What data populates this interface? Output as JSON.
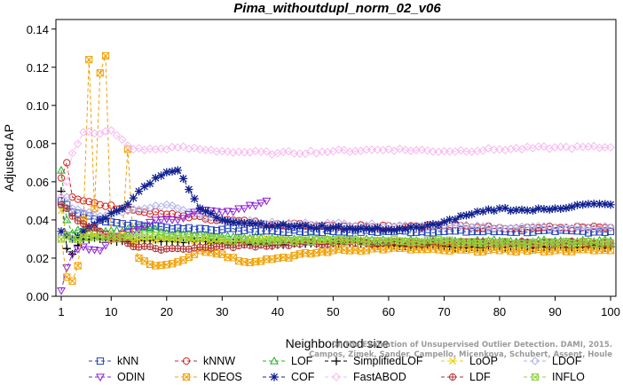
{
  "chart_data": {
    "type": "line",
    "title": "Pima_withoutdupl_norm_02_v06",
    "xlabel": "Neighborhood size",
    "ylabel": "Adjusted AP",
    "xlim": [
      1,
      100
    ],
    "ylim": [
      0,
      0.145
    ],
    "x_ticks": [
      1,
      10,
      20,
      30,
      40,
      50,
      60,
      70,
      80,
      90,
      100
    ],
    "y_ticks": [
      0.0,
      0.02,
      0.04,
      0.06,
      0.08,
      0.1,
      0.12,
      0.14
    ],
    "y_tick_labels": [
      "0.00",
      "0.02",
      "0.04",
      "0.06",
      "0.08",
      "0.10",
      "0.12",
      "0.14"
    ],
    "grid": false,
    "legend_position": "bottom",
    "watermark": [
      "Campos, Zimek, Sander, Campello, Micenkova, Schubert, Assent, Houle",
      "On the Evaluation of Unsupervised Outlier Detection. DAMI, 2015."
    ],
    "series": [
      {
        "name": "kNN",
        "color": "#1f3fbf",
        "marker": "square",
        "dash": "4,3",
        "anchors": [
          [
            1,
            0.05
          ],
          [
            2,
            0.048
          ],
          [
            3,
            0.044
          ],
          [
            5,
            0.043
          ],
          [
            8,
            0.04
          ],
          [
            12,
            0.038
          ],
          [
            20,
            0.036
          ],
          [
            30,
            0.035
          ],
          [
            40,
            0.034
          ],
          [
            50,
            0.034
          ],
          [
            60,
            0.034
          ],
          [
            70,
            0.034
          ],
          [
            80,
            0.034
          ],
          [
            90,
            0.034
          ],
          [
            100,
            0.034
          ]
        ]
      },
      {
        "name": "kNNW",
        "color": "#d62020",
        "marker": "circle",
        "dash": "4,3",
        "anchors": [
          [
            1,
            0.062
          ],
          [
            2,
            0.07
          ],
          [
            3,
            0.052
          ],
          [
            5,
            0.05
          ],
          [
            8,
            0.048
          ],
          [
            12,
            0.046
          ],
          [
            16,
            0.044
          ],
          [
            20,
            0.043
          ],
          [
            30,
            0.04
          ],
          [
            40,
            0.038
          ],
          [
            50,
            0.037
          ],
          [
            60,
            0.037
          ],
          [
            70,
            0.037
          ],
          [
            80,
            0.036
          ],
          [
            90,
            0.036
          ],
          [
            100,
            0.036
          ]
        ]
      },
      {
        "name": "LOF",
        "color": "#20b020",
        "marker": "triangle-up",
        "dash": "4,3",
        "anchors": [
          [
            1,
            0.066
          ],
          [
            2,
            0.04
          ],
          [
            3,
            0.033
          ],
          [
            5,
            0.035
          ],
          [
            8,
            0.034
          ],
          [
            12,
            0.034
          ],
          [
            16,
            0.036
          ],
          [
            20,
            0.033
          ],
          [
            30,
            0.031
          ],
          [
            40,
            0.03
          ],
          [
            50,
            0.03
          ],
          [
            60,
            0.029
          ],
          [
            70,
            0.029
          ],
          [
            80,
            0.029
          ],
          [
            90,
            0.029
          ],
          [
            100,
            0.029
          ]
        ]
      },
      {
        "name": "SimplifiedLOF",
        "color": "#000000",
        "marker": "plus",
        "dash": "4,3",
        "anchors": [
          [
            1,
            0.055
          ],
          [
            2,
            0.025
          ],
          [
            3,
            0.022
          ],
          [
            5,
            0.03
          ],
          [
            8,
            0.03
          ],
          [
            12,
            0.029
          ],
          [
            16,
            0.029
          ],
          [
            20,
            0.029
          ],
          [
            30,
            0.028
          ],
          [
            40,
            0.027
          ],
          [
            50,
            0.028
          ],
          [
            60,
            0.027
          ],
          [
            70,
            0.026
          ],
          [
            80,
            0.026
          ],
          [
            90,
            0.026
          ],
          [
            100,
            0.026
          ]
        ]
      },
      {
        "name": "LoOP",
        "color": "#e8d000",
        "marker": "x",
        "dash": "4,3",
        "anchors": [
          [
            1,
            0.045
          ],
          [
            2,
            0.032
          ],
          [
            3,
            0.03
          ],
          [
            5,
            0.032
          ],
          [
            8,
            0.031
          ],
          [
            12,
            0.03
          ],
          [
            16,
            0.03
          ],
          [
            20,
            0.03
          ],
          [
            30,
            0.029
          ],
          [
            40,
            0.03
          ],
          [
            50,
            0.029
          ],
          [
            60,
            0.029
          ],
          [
            70,
            0.028
          ],
          [
            80,
            0.028
          ],
          [
            90,
            0.028
          ],
          [
            100,
            0.028
          ]
        ]
      },
      {
        "name": "LDOF",
        "color": "#b0b0e8",
        "marker": "diamond",
        "dash": "4,3",
        "anchors": [
          [
            1,
            0.048
          ],
          [
            2,
            0.052
          ],
          [
            3,
            0.046
          ],
          [
            5,
            0.044
          ],
          [
            8,
            0.042
          ],
          [
            12,
            0.044
          ],
          [
            16,
            0.046
          ],
          [
            20,
            0.048
          ],
          [
            24,
            0.044
          ],
          [
            30,
            0.04
          ],
          [
            40,
            0.038
          ],
          [
            50,
            0.038
          ],
          [
            60,
            0.037
          ],
          [
            70,
            0.037
          ],
          [
            80,
            0.036
          ],
          [
            90,
            0.036
          ],
          [
            100,
            0.036
          ]
        ]
      },
      {
        "name": "ODIN",
        "color": "#8a20d6",
        "marker": "triangle-down",
        "dash": "4,3",
        "anchors": [
          [
            1,
            0.003
          ],
          [
            2,
            0.015
          ],
          [
            3,
            0.022
          ],
          [
            5,
            0.026
          ],
          [
            8,
            0.024
          ],
          [
            10,
            0.03
          ],
          [
            14,
            0.034
          ],
          [
            18,
            0.04
          ],
          [
            22,
            0.04
          ],
          [
            26,
            0.045
          ],
          [
            30,
            0.044
          ],
          [
            34,
            0.046
          ],
          [
            38,
            0.05
          ]
        ]
      },
      {
        "name": "KDEOS",
        "color": "#f0a000",
        "marker": "square-x",
        "dash": "4,3",
        "anchors": [
          [
            1,
            0.03
          ],
          [
            2,
            0.01
          ],
          [
            3,
            0.008
          ],
          [
            4,
            0.016
          ],
          [
            5,
            0.04
          ],
          [
            6,
            0.124
          ],
          [
            7,
            0.046
          ],
          [
            8,
            0.117
          ],
          [
            9,
            0.126
          ],
          [
            10,
            0.03
          ],
          [
            12,
            0.032
          ],
          [
            13,
            0.077
          ],
          [
            14,
            0.028
          ],
          [
            15,
            0.02
          ],
          [
            18,
            0.016
          ],
          [
            22,
            0.018
          ],
          [
            26,
            0.024
          ],
          [
            30,
            0.022
          ],
          [
            34,
            0.018
          ],
          [
            40,
            0.02
          ],
          [
            50,
            0.024
          ],
          [
            60,
            0.025
          ],
          [
            70,
            0.024
          ],
          [
            80,
            0.024
          ],
          [
            90,
            0.024
          ],
          [
            100,
            0.024
          ]
        ]
      },
      {
        "name": "COF",
        "color": "#102090",
        "marker": "asterisk",
        "dash": "4,3",
        "anchors": [
          [
            1,
            0.034
          ],
          [
            2,
            0.032
          ],
          [
            3,
            0.03
          ],
          [
            5,
            0.034
          ],
          [
            8,
            0.04
          ],
          [
            12,
            0.046
          ],
          [
            15,
            0.055
          ],
          [
            18,
            0.062
          ],
          [
            20,
            0.065
          ],
          [
            22,
            0.066
          ],
          [
            24,
            0.056
          ],
          [
            26,
            0.046
          ],
          [
            30,
            0.04
          ],
          [
            40,
            0.037
          ],
          [
            50,
            0.036
          ],
          [
            60,
            0.035
          ],
          [
            66,
            0.036
          ],
          [
            70,
            0.039
          ],
          [
            75,
            0.043
          ],
          [
            80,
            0.046
          ],
          [
            85,
            0.045
          ],
          [
            90,
            0.046
          ],
          [
            95,
            0.048
          ],
          [
            100,
            0.048
          ]
        ]
      },
      {
        "name": "FastABOD",
        "color": "#f7b8f0",
        "marker": "diamond",
        "dash": "4,3",
        "anchors": [
          [
            1,
            0.052
          ],
          [
            2,
            0.06
          ],
          [
            3,
            0.075
          ],
          [
            5,
            0.086
          ],
          [
            8,
            0.085
          ],
          [
            10,
            0.087
          ],
          [
            14,
            0.077
          ],
          [
            18,
            0.077
          ],
          [
            22,
            0.078
          ],
          [
            26,
            0.077
          ],
          [
            30,
            0.076
          ],
          [
            40,
            0.075
          ],
          [
            50,
            0.076
          ],
          [
            60,
            0.077
          ],
          [
            70,
            0.076
          ],
          [
            80,
            0.077
          ],
          [
            90,
            0.078
          ],
          [
            100,
            0.078
          ]
        ]
      },
      {
        "name": "LDF",
        "color": "#b03030",
        "marker": "circle-plus",
        "dash": "4,3",
        "anchors": [
          [
            1,
            0.048
          ],
          [
            2,
            0.046
          ],
          [
            3,
            0.042
          ],
          [
            5,
            0.038
          ],
          [
            8,
            0.034
          ],
          [
            12,
            0.03
          ],
          [
            14,
            0.026
          ],
          [
            18,
            0.025
          ],
          [
            22,
            0.025
          ],
          [
            30,
            0.026
          ],
          [
            40,
            0.027
          ],
          [
            50,
            0.028
          ],
          [
            60,
            0.028
          ],
          [
            70,
            0.028
          ],
          [
            80,
            0.028
          ],
          [
            90,
            0.028
          ],
          [
            100,
            0.028
          ]
        ]
      },
      {
        "name": "INFLO",
        "color": "#90d040",
        "marker": "square-x",
        "dash": "4,3",
        "anchors": [
          [
            1,
            0.03
          ],
          [
            2,
            0.032
          ],
          [
            3,
            0.03
          ],
          [
            5,
            0.031
          ],
          [
            8,
            0.031
          ],
          [
            12,
            0.031
          ],
          [
            16,
            0.032
          ],
          [
            20,
            0.031
          ],
          [
            30,
            0.03
          ],
          [
            40,
            0.029
          ],
          [
            50,
            0.029
          ],
          [
            60,
            0.029
          ],
          [
            70,
            0.029
          ],
          [
            80,
            0.028
          ],
          [
            90,
            0.028
          ],
          [
            100,
            0.028
          ]
        ]
      }
    ]
  }
}
